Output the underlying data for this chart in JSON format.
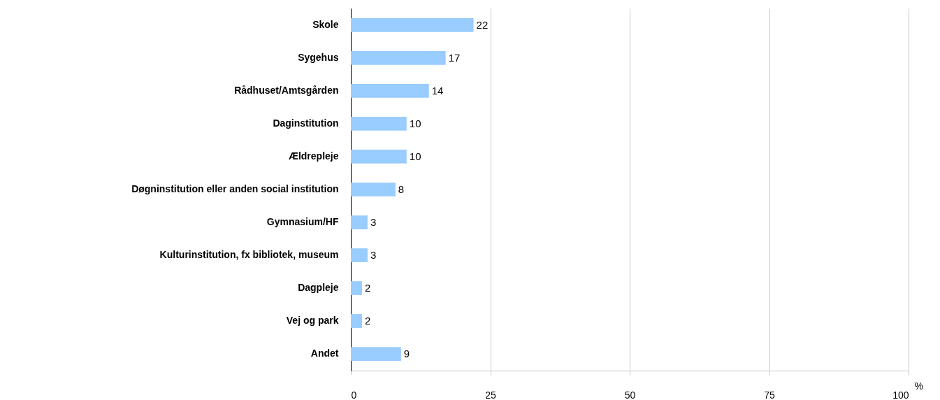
{
  "chart_data": {
    "type": "bar",
    "orientation": "horizontal",
    "xlabel": "%",
    "categories": [
      "Skole",
      "Sygehus",
      "Rådhuset/Amtsgården",
      "Daginstitution",
      "Ældrepleje",
      "Døgninstitution eller anden social institution",
      "Gymnasium/HF",
      "Kulturinstitution, fx bibliotek, museum",
      "Dagpleje",
      "Vej og park",
      "Andet"
    ],
    "values": [
      22,
      17,
      14,
      10,
      10,
      8,
      3,
      3,
      2,
      2,
      9
    ],
    "color": "#99ccff",
    "data_labels": true,
    "grid": "x",
    "xlim": [
      0,
      100
    ],
    "xticks": [
      0,
      25,
      50,
      75,
      100
    ]
  }
}
